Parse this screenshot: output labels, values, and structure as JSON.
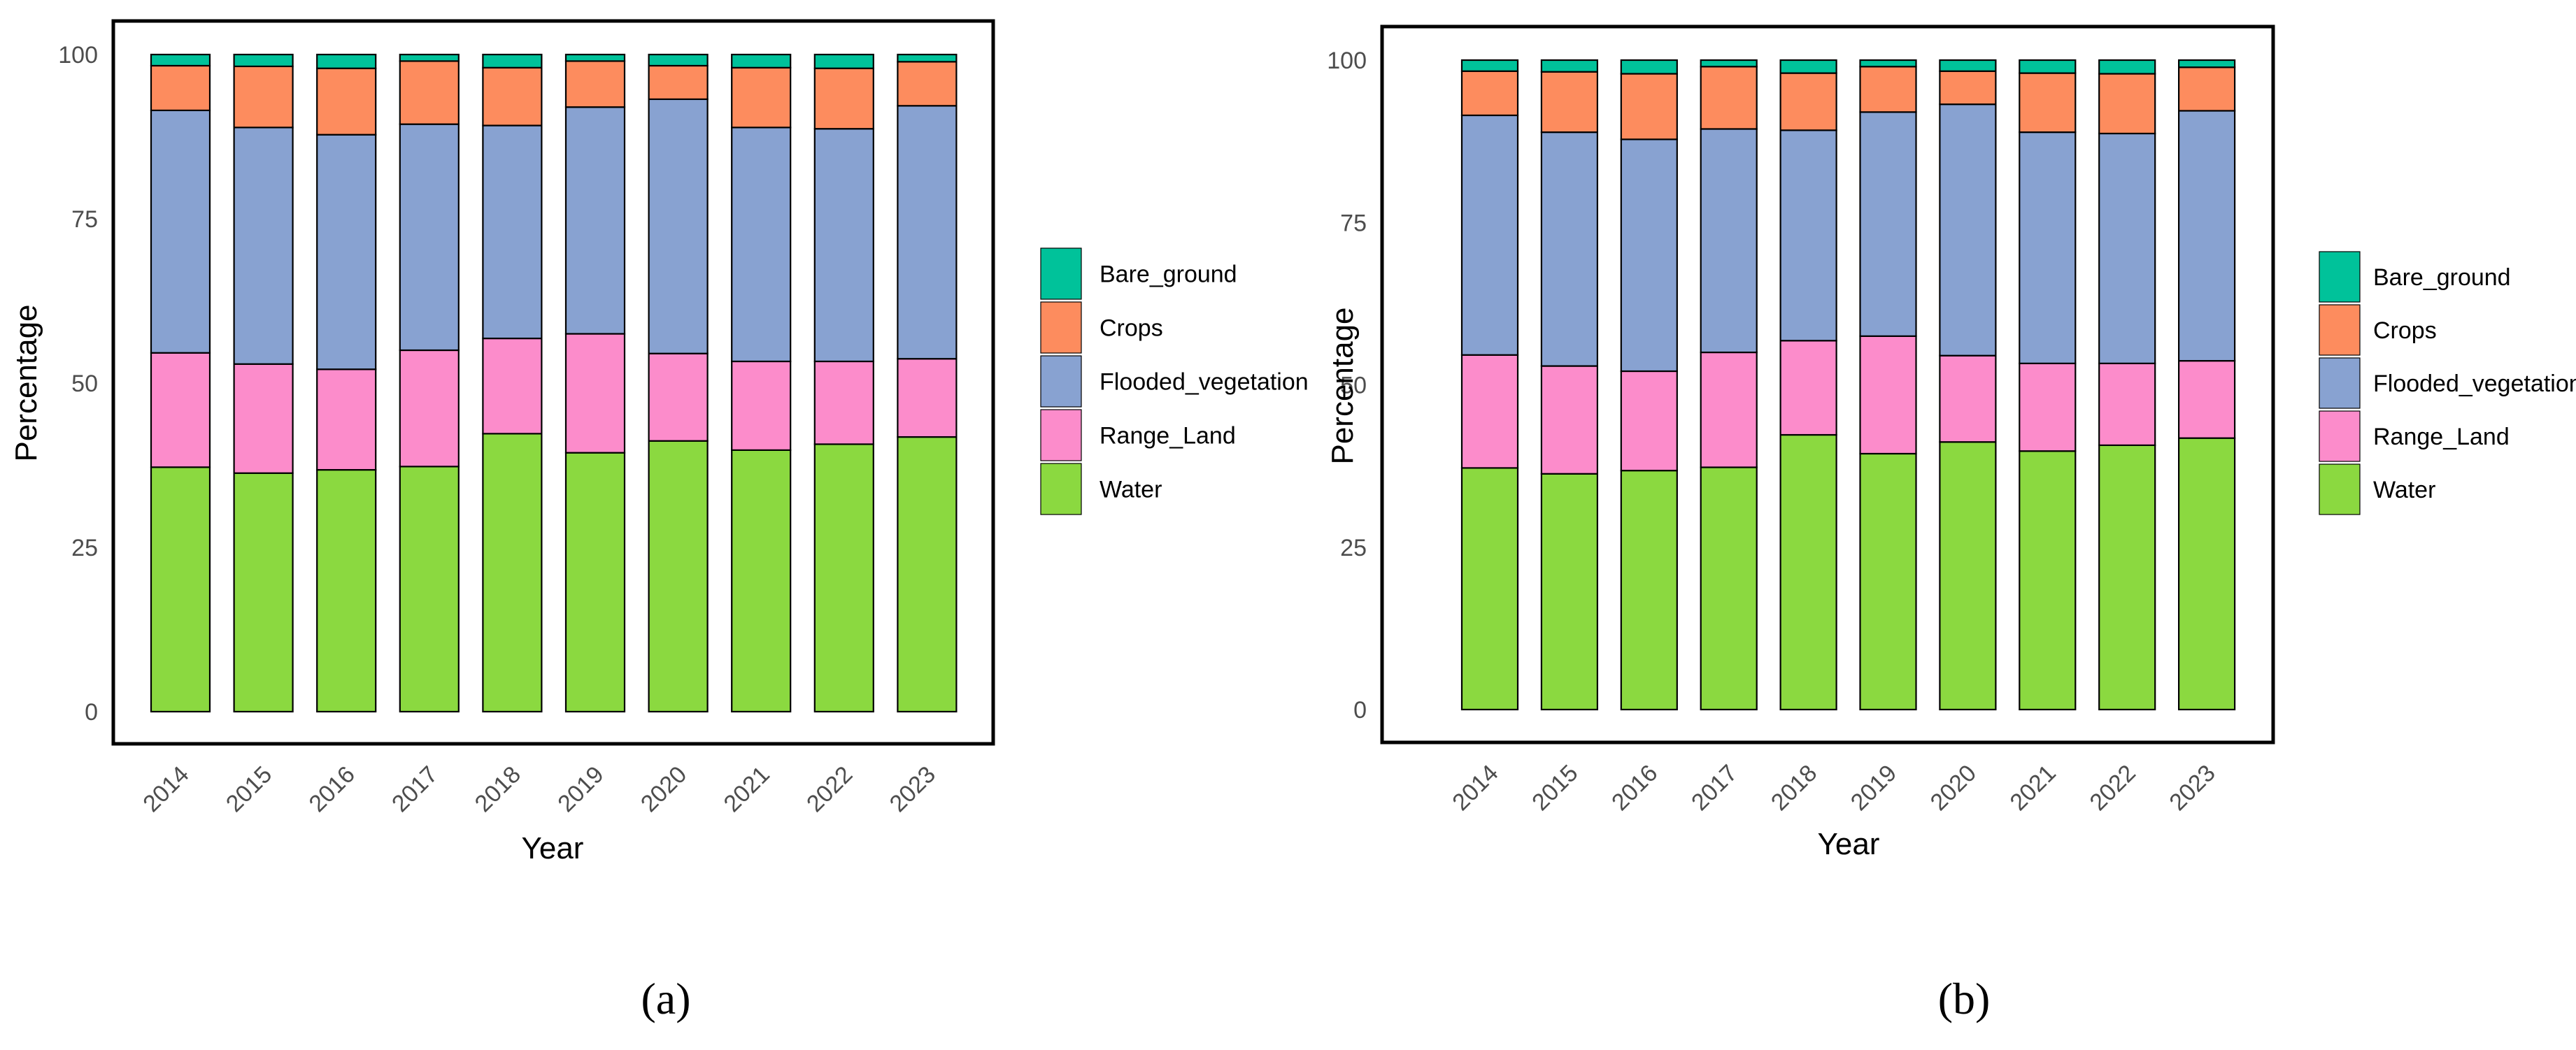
{
  "colors": {
    "Bare_ground": "#00c29a",
    "Crops": "#fd8c5e",
    "Flooded_vegetation": "#88a2d1",
    "Range_Land": "#fc8ccb",
    "Water": "#8bd940"
  },
  "chart_data": [
    {
      "type": "bar",
      "stacked": true,
      "panel_label": "(a)",
      "title": "",
      "xlabel": "Year",
      "ylabel": "Percentage",
      "ylim": [
        0,
        100
      ],
      "yticks": [
        0,
        25,
        50,
        75,
        100
      ],
      "grid": false,
      "legend": {
        "position": "right",
        "entries": [
          "Bare_ground",
          "Crops",
          "Flooded_vegetation",
          "Range_Land",
          "Water"
        ]
      },
      "categories": [
        "2014",
        "2015",
        "2016",
        "2017",
        "2018",
        "2019",
        "2020",
        "2021",
        "2022",
        "2023"
      ],
      "series": [
        {
          "name": "Water",
          "values": [
            37.2,
            36.3,
            36.8,
            37.3,
            42.3,
            39.4,
            41.2,
            39.8,
            40.7,
            41.8
          ]
        },
        {
          "name": "Range_Land",
          "values": [
            17.4,
            16.6,
            15.3,
            17.7,
            14.5,
            18.1,
            13.3,
            13.5,
            12.6,
            11.9
          ]
        },
        {
          "name": "Flooded_vegetation",
          "values": [
            36.9,
            36.0,
            35.7,
            34.4,
            32.4,
            34.5,
            38.7,
            35.6,
            35.4,
            38.5
          ]
        },
        {
          "name": "Crops",
          "values": [
            6.8,
            9.3,
            10.1,
            9.6,
            8.8,
            7.0,
            5.1,
            9.1,
            9.2,
            6.7
          ]
        },
        {
          "name": "Bare_ground",
          "values": [
            1.7,
            1.8,
            2.1,
            1.0,
            2.0,
            1.0,
            1.7,
            2.0,
            2.1,
            1.1
          ]
        }
      ]
    },
    {
      "type": "bar",
      "stacked": true,
      "panel_label": "(b)",
      "title": "",
      "xlabel": "Year",
      "ylabel": "Percentage",
      "ylim": [
        0,
        100
      ],
      "yticks": [
        0,
        25,
        50,
        75,
        100
      ],
      "grid": false,
      "legend": {
        "position": "right",
        "entries": [
          "Bare_ground",
          "Crops",
          "Flooded_vegetation",
          "Range_Land",
          "Water"
        ]
      },
      "categories": [
        "2014",
        "2015",
        "2016",
        "2017",
        "2018",
        "2019",
        "2020",
        "2021",
        "2022",
        "2023"
      ],
      "series": [
        {
          "name": "Water",
          "values": [
            37.2,
            36.3,
            36.8,
            37.3,
            42.3,
            39.4,
            41.2,
            39.8,
            40.7,
            41.8
          ]
        },
        {
          "name": "Range_Land",
          "values": [
            17.4,
            16.6,
            15.3,
            17.7,
            14.5,
            18.1,
            13.3,
            13.5,
            12.6,
            11.9
          ]
        },
        {
          "name": "Flooded_vegetation",
          "values": [
            36.9,
            36.0,
            35.7,
            34.4,
            32.4,
            34.5,
            38.7,
            35.6,
            35.4,
            38.5
          ]
        },
        {
          "name": "Crops",
          "values": [
            6.8,
            9.3,
            10.1,
            9.6,
            8.8,
            7.0,
            5.1,
            9.1,
            9.2,
            6.7
          ]
        },
        {
          "name": "Bare_ground",
          "values": [
            1.7,
            1.8,
            2.1,
            1.0,
            2.0,
            1.0,
            1.7,
            2.0,
            2.1,
            1.1
          ]
        }
      ]
    }
  ]
}
